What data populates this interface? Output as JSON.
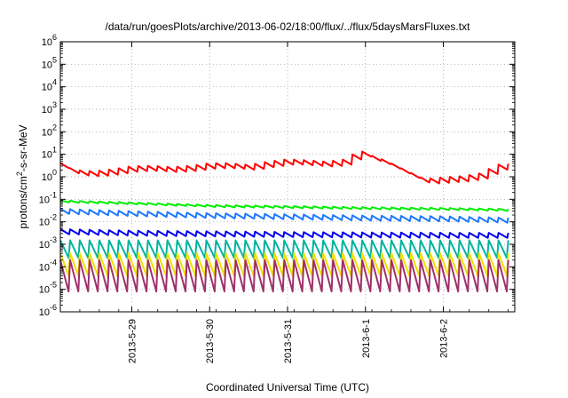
{
  "chart_data": {
    "type": "line",
    "title": "/data/run/goesPlots/archive/2013-06-02/18:00/flux/../flux/5daysMarsFluxes.txt",
    "xlabel": "Coordinated Universal Time (UTC)",
    "ylabel": {
      "prefix": "protons/cm",
      "sup": "2",
      "suffix": "-s-sr-MeV"
    },
    "y_scale": "log",
    "ylim": [
      1e-06,
      1000000.0
    ],
    "xlim": [
      "2013-05-28T02:00",
      "2013-06-02T22:00"
    ],
    "grid": true,
    "y_ticks": [
      {
        "base": "10",
        "exp": "-6"
      },
      {
        "base": "10",
        "exp": "-5"
      },
      {
        "base": "10",
        "exp": "-4"
      },
      {
        "base": "10",
        "exp": "-3"
      },
      {
        "base": "10",
        "exp": "-2"
      },
      {
        "base": "10",
        "exp": "-1"
      },
      {
        "base": "10",
        "exp": "0"
      },
      {
        "base": "10",
        "exp": "1"
      },
      {
        "base": "10",
        "exp": "2"
      },
      {
        "base": "10",
        "exp": "3"
      },
      {
        "base": "10",
        "exp": "4"
      },
      {
        "base": "10",
        "exp": "5"
      },
      {
        "base": "10",
        "exp": "6"
      }
    ],
    "x_ticks": [
      {
        "label": "2013-5-29",
        "date": "2013-05-29T00:00"
      },
      {
        "label": "2013-5-30",
        "date": "2013-05-30T00:00"
      },
      {
        "label": "2013-5-31",
        "date": "2013-05-31T00:00"
      },
      {
        "label": "2013-6-1",
        "date": "2013-06-01T00:00"
      },
      {
        "label": "2013-6-2",
        "date": "2013-06-02T00:00"
      }
    ],
    "series": [
      {
        "color": "#ff0000",
        "style": "sawtooth",
        "x": [
          "2013-05-28T02:00",
          "2013-05-28T06:00",
          "2013-05-28T12:00",
          "2013-05-28T18:00",
          "2013-05-29T00:00",
          "2013-05-29T06:00",
          "2013-05-29T12:00",
          "2013-05-29T18:00",
          "2013-05-30T00:00",
          "2013-05-30T06:00",
          "2013-05-30T12:00",
          "2013-05-30T18:00",
          "2013-05-31T00:00",
          "2013-05-31T06:00",
          "2013-05-31T12:00",
          "2013-05-31T18:00",
          "2013-05-31T22:00",
          "2013-06-01T00:00",
          "2013-06-01T06:00",
          "2013-06-01T12:00",
          "2013-06-01T18:00",
          "2013-06-02T00:00",
          "2013-06-02T06:00",
          "2013-06-02T12:00",
          "2013-06-02T16:00",
          "2013-06-02T22:00"
        ],
        "y": [
          3,
          1.5,
          1.3,
          1.6,
          2.2,
          2.3,
          2.0,
          2.3,
          3.0,
          3.0,
          2.5,
          3.5,
          4.5,
          4.0,
          3.5,
          4.5,
          12,
          8,
          4,
          1.5,
          0.6,
          0.7,
          0.8,
          1.1,
          2.5,
          3.0
        ]
      },
      {
        "color": "#00ee00",
        "style": "smooth",
        "x": [
          "2013-05-28T02:00",
          "2013-05-29T00:00",
          "2013-05-30T00:00",
          "2013-05-31T00:00",
          "2013-06-01T00:00",
          "2013-06-02T00:00",
          "2013-06-02T22:00"
        ],
        "y": [
          0.08,
          0.065,
          0.05,
          0.045,
          0.04,
          0.037,
          0.033
        ]
      },
      {
        "color": "#1e78ff",
        "style": "sawtooth",
        "x": [
          "2013-05-28T02:00",
          "2013-05-29T00:00",
          "2013-05-30T00:00",
          "2013-05-31T00:00",
          "2013-06-01T00:00",
          "2013-06-02T00:00",
          "2013-06-02T22:00"
        ],
        "y": [
          0.028,
          0.022,
          0.018,
          0.016,
          0.014,
          0.013,
          0.011
        ]
      },
      {
        "color": "#0000ee",
        "style": "sawtooth",
        "x": [
          "2013-05-28T02:00",
          "2013-05-29T00:00",
          "2013-05-30T00:00",
          "2013-05-31T00:00",
          "2013-06-01T00:00",
          "2013-06-02T00:00",
          "2013-06-02T22:00"
        ],
        "y": [
          0.0035,
          0.003,
          0.0028,
          0.0026,
          0.0025,
          0.0024,
          0.0024
        ]
      },
      {
        "color": "#00b4a0",
        "style": "spiky",
        "x": [
          "2013-05-28T02:00",
          "2013-06-02T22:00"
        ],
        "y_high": [
          0.0015,
          0.0015
        ],
        "y_low": [
          0.00025,
          0.00025
        ]
      },
      {
        "color": "#f0e000",
        "style": "spiky",
        "x": [
          "2013-05-28T02:00",
          "2013-06-02T22:00"
        ],
        "y_high": [
          0.0004,
          0.0004
        ],
        "y_low": [
          4e-05,
          4e-05
        ]
      },
      {
        "color": "#a0306a",
        "style": "spiky",
        "x": [
          "2013-05-28T02:00",
          "2013-06-02T22:00"
        ],
        "y_high": [
          0.0002,
          0.0002
        ],
        "y_low": [
          8e-06,
          8e-06
        ]
      }
    ]
  }
}
